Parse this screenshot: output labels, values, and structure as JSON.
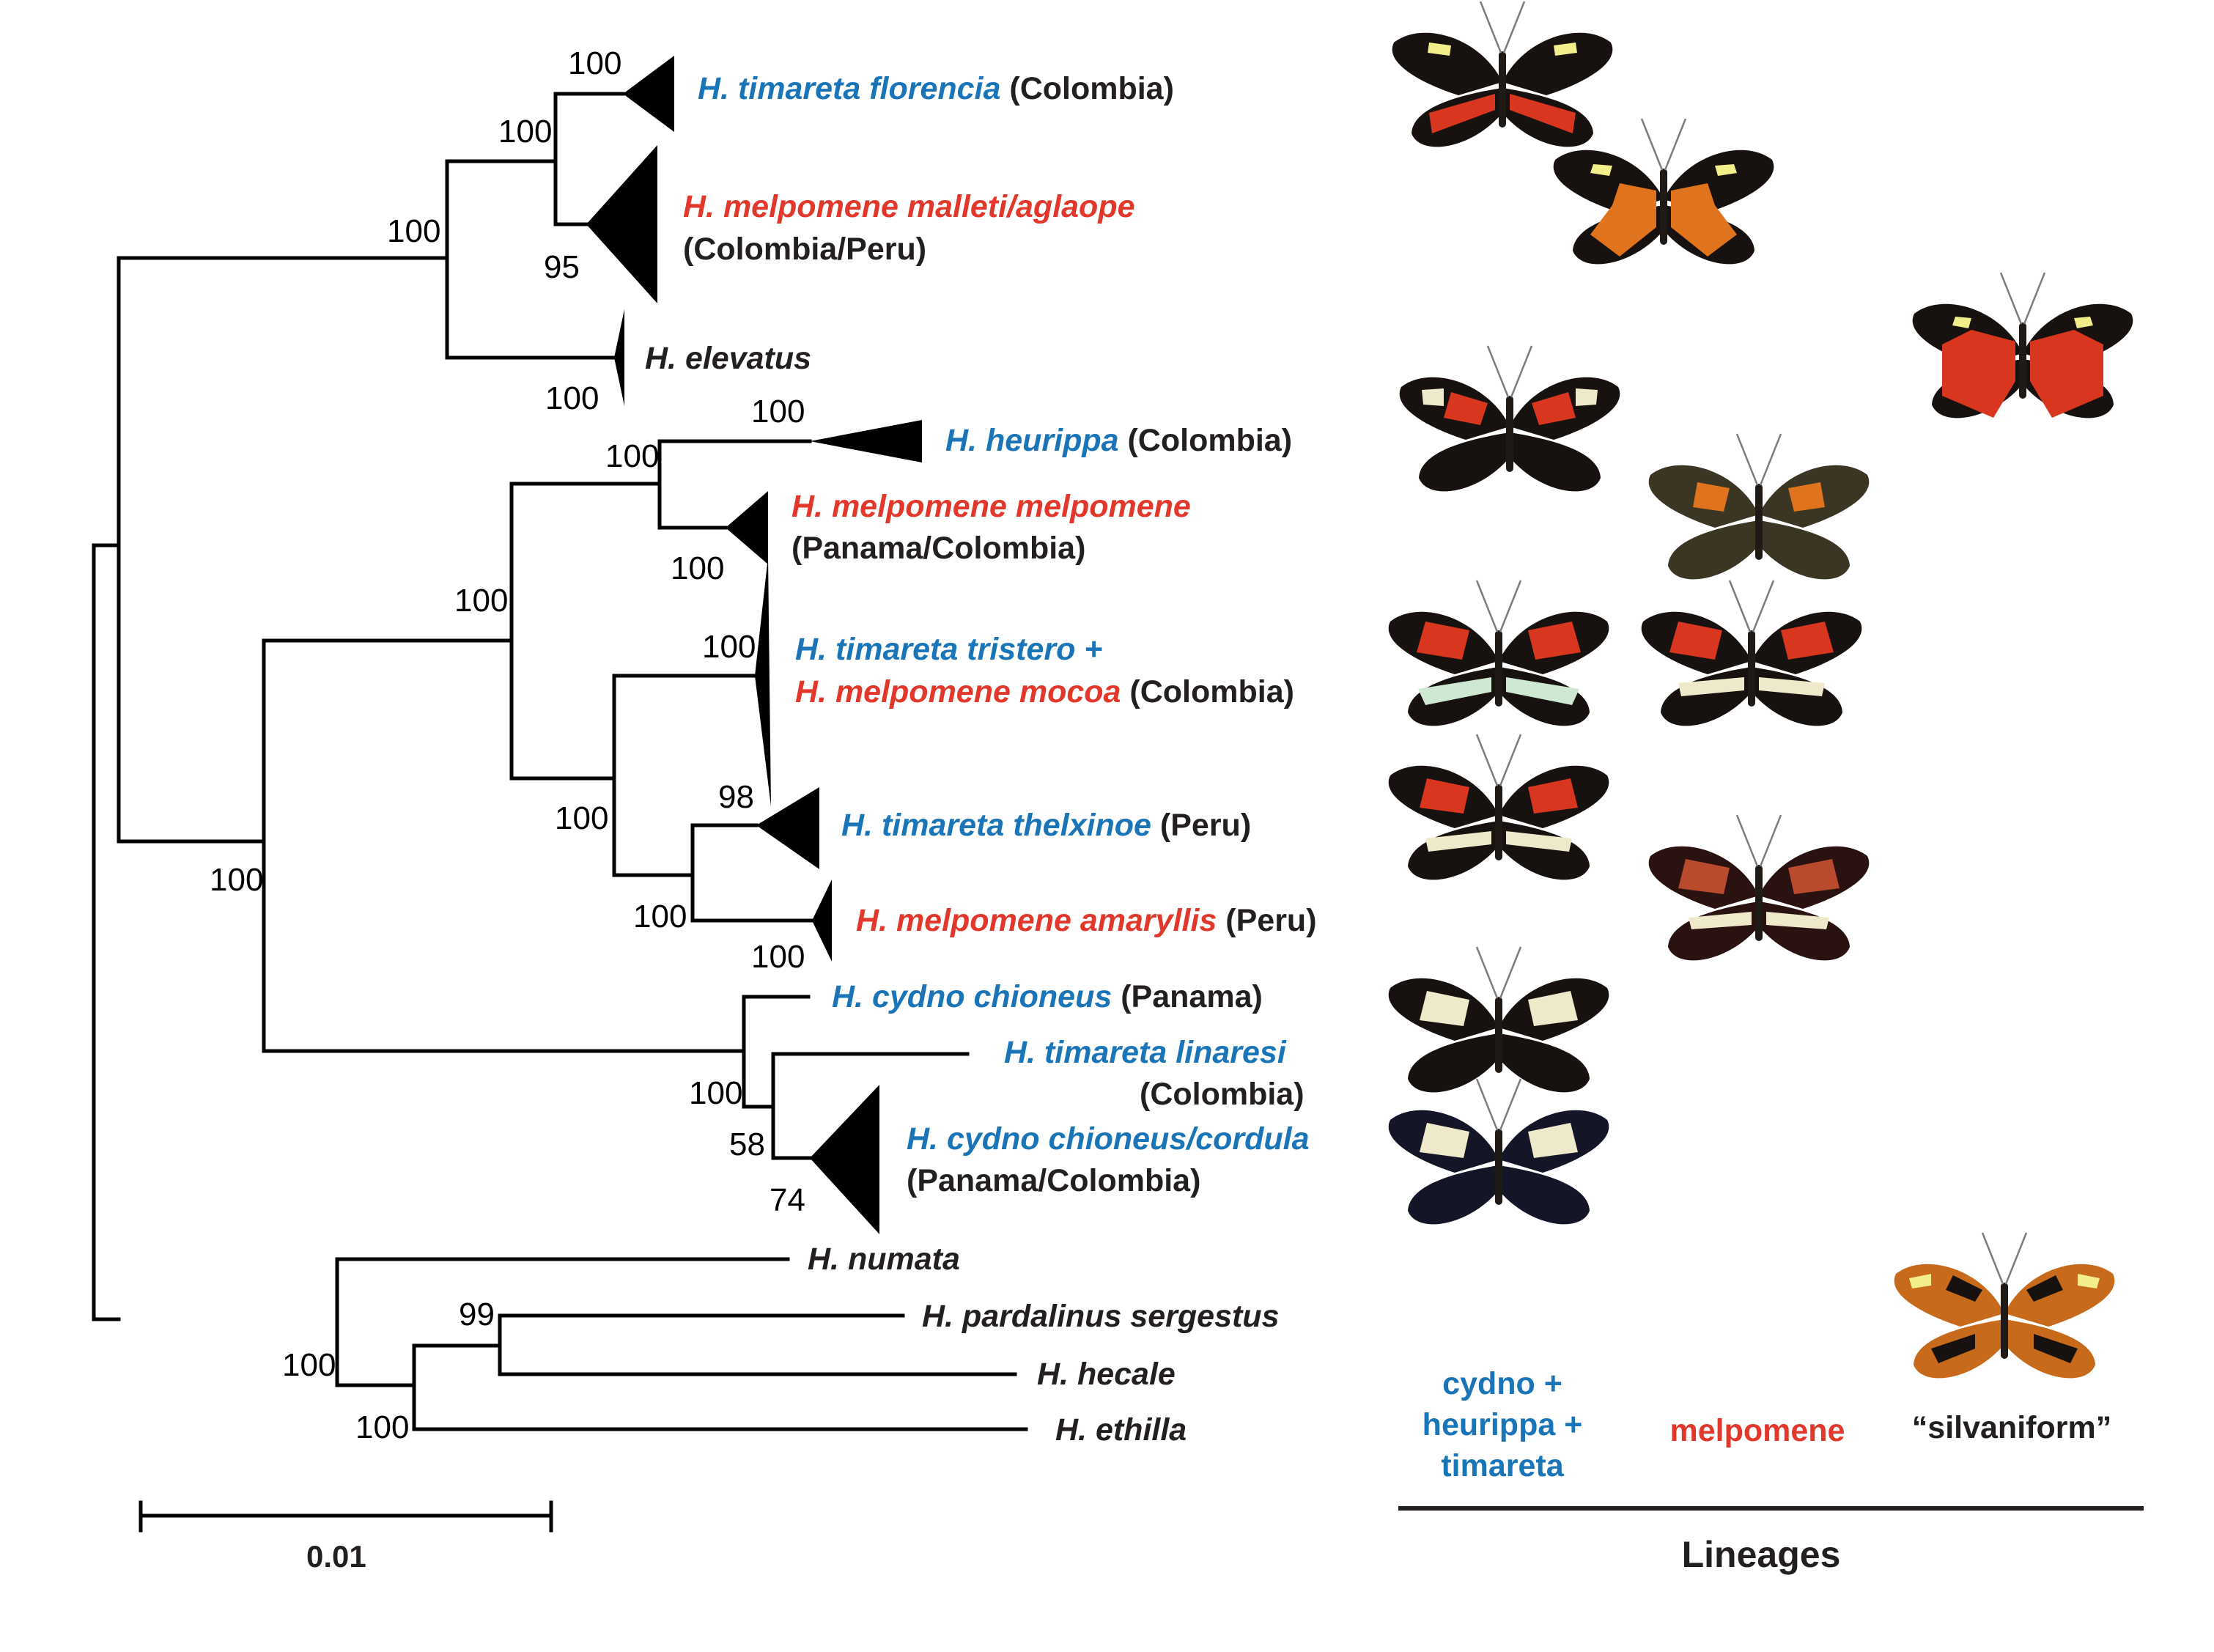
{
  "colors": {
    "cydno_group": "#1a75b8",
    "melpomene_group": "#e2382b",
    "other": "#231f20"
  },
  "taxa": {
    "florencia": {
      "name": "H. timareta florencia",
      "region": "(Colombia)"
    },
    "malleti": {
      "name": "H. melpomene malleti/aglaope",
      "region": "(Colombia/Peru)"
    },
    "elevatus": {
      "name": "H. elevatus"
    },
    "heurippa": {
      "name": "H. heurippa",
      "region": "(Colombia)"
    },
    "melpomene": {
      "name": "H. melpomene melpomene",
      "region": "(Panama/Colombia)"
    },
    "tristero": {
      "name": "H. timareta tristero +"
    },
    "mocoa": {
      "name": "H. melpomene mocoa",
      "region": "(Colombia)"
    },
    "thelxinoe": {
      "name": "H. timareta thelxinoe",
      "region": "(Peru)"
    },
    "amaryllis": {
      "name": "H. melpomene amaryllis",
      "region": "(Peru)"
    },
    "chioneus": {
      "name": "H. cydno chioneus",
      "region": "(Panama)"
    },
    "linaresi": {
      "name": "H. timareta linaresi",
      "region": "(Colombia)"
    },
    "cordula": {
      "name": "H. cydno chioneus/cordula",
      "region": "(Panama/Colombia)"
    },
    "numata": {
      "name": "H. numata"
    },
    "pardalinus": {
      "name": "H. pardalinus sergestus"
    },
    "hecale": {
      "name": "H. hecale"
    },
    "ethilla": {
      "name": "H. ethilla"
    }
  },
  "support": {
    "florencia": "100",
    "melp_node": "100",
    "malleti": "95",
    "mel_elev": "100",
    "elevatus": "100",
    "heurippa": "100",
    "heur_node": "100",
    "melpomene": "100",
    "tristero": "100",
    "thelx_node": "98",
    "tim_clade": "100",
    "thelx_amar": "100",
    "amaryllis": "100",
    "mid_node": "100",
    "big_node": "100",
    "cydno_node": "100",
    "lin_cord": "58",
    "cordula": "74",
    "out_node": "100",
    "pard_node": "99",
    "hec_eth": "100"
  },
  "scale_bar": {
    "label": "0.01"
  },
  "lineages": {
    "title": "Lineages",
    "cydno_lines": [
      "cydno +",
      "heurippa +",
      "timareta"
    ],
    "melpomene": "melpomene",
    "silvaniform": "“silvaniform”"
  },
  "wing_colors": {
    "black": "#17120f",
    "red": "#d8361f",
    "orange": "#e0741e",
    "yellow": "#f2ee8a",
    "cream": "#efe9cc",
    "mint": "#cfe8d2",
    "tawny": "#c86a1c",
    "dusty_red": "#b94a2e"
  }
}
